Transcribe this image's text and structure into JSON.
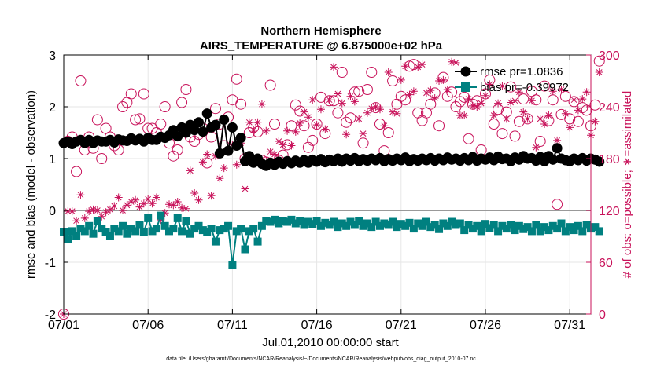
{
  "chart_data": {
    "type": "line",
    "title": "Northern Hemisphere",
    "subtitle": "AIRS_TEMPERATURE @ 6.875000e+02 hPa",
    "xlabel": "Jul.01,2010 00:00:00 start",
    "ylabel_left": "rmse and bias (model - observation)",
    "ylabel_right": "# of obs: o=possible; ∗=assimilated",
    "footnote": "data file: /Users/gharamti/Documents/NCAR/Reanalysis/~/Documents/NCAR/Reanalysis/webpub/obs_diag_output_2010-07.nc",
    "x_range": [
      1,
      32.25
    ],
    "ylim_left": [
      -2,
      3
    ],
    "ylim_right": [
      0,
      300
    ],
    "x_ticks": [
      1,
      6,
      11,
      16,
      21,
      26,
      31
    ],
    "x_tick_labels": [
      "07/01",
      "07/06",
      "07/11",
      "07/16",
      "07/21",
      "07/26",
      "07/31"
    ],
    "y_left_ticks": [
      -2,
      -1,
      0,
      1,
      2,
      3
    ],
    "y_right_ticks": [
      0,
      60,
      120,
      180,
      240,
      300
    ],
    "grid": true,
    "legend_position": "top-right",
    "colors": {
      "rmse": "#000000",
      "bias": "#008080",
      "obs": "#c8125a",
      "zero_line": "#999999"
    },
    "series": [
      {
        "name": "rmse pr=1.0836",
        "key": "rmse",
        "marker": "filled-circle",
        "values": [
          1.3,
          1.33,
          1.28,
          1.33,
          1.36,
          1.3,
          1.36,
          1.3,
          1.35,
          1.33,
          1.33,
          1.36,
          1.31,
          1.37,
          1.35,
          1.34,
          1.39,
          1.35,
          1.38,
          1.33,
          1.4,
          1.36,
          1.36,
          1.42,
          1.4,
          1.45,
          1.55,
          1.43,
          1.6,
          1.5,
          1.65,
          1.55,
          1.7,
          1.52,
          1.87,
          1.6,
          1.65,
          1.1,
          1.75,
          1.15,
          1.6,
          1.25,
          1.4,
          0.95,
          1.05,
          0.92,
          1.0,
          0.9,
          0.86,
          0.92,
          0.88,
          0.94,
          0.9,
          0.95,
          0.91,
          0.96,
          0.92,
          0.97,
          0.92,
          0.98,
          0.94,
          0.99,
          0.93,
          0.98,
          0.95,
          1.0,
          0.94,
          1.0,
          0.96,
          1.01,
          0.95,
          0.99,
          0.96,
          1.0,
          0.97,
          1.01,
          0.95,
          0.99,
          0.96,
          1.0,
          0.97,
          1.02,
          0.95,
          0.99,
          0.96,
          1.0,
          0.97,
          1.01,
          0.96,
          1.0,
          0.97,
          1.02,
          0.98,
          1.0,
          0.96,
          1.01,
          0.97,
          1.03,
          0.96,
          1.0,
          0.98,
          1.02,
          0.97,
          1.04,
          0.99,
          1.0,
          0.95,
          1.02,
          0.98,
          1.05,
          1.0,
          1.01,
          0.96,
          1.03,
          0.95,
          1.05,
          0.98,
          1.2,
          1.0,
          0.97,
          0.95,
          1.0,
          0.97,
          1.01,
          0.96,
          1.0,
          0.98,
          0.94
        ]
      },
      {
        "name": "bias pr=-0.39972",
        "key": "bias",
        "marker": "filled-square",
        "values": [
          -0.42,
          -0.55,
          -0.4,
          -0.5,
          -0.35,
          -0.4,
          -0.3,
          -0.45,
          -0.2,
          -0.35,
          -0.42,
          -0.5,
          -0.35,
          -0.4,
          -0.3,
          -0.45,
          -0.35,
          -0.4,
          -0.28,
          -0.42,
          -0.15,
          -0.4,
          -0.35,
          -0.1,
          -0.3,
          -0.4,
          -0.35,
          -0.15,
          -0.4,
          -0.2,
          -0.45,
          -0.35,
          -0.3,
          -0.38,
          -0.42,
          -0.35,
          -0.6,
          -0.38,
          -0.35,
          -0.3,
          -1.05,
          -0.4,
          -0.35,
          -0.75,
          -0.4,
          -0.35,
          -0.6,
          -0.3,
          -0.2,
          -0.22,
          -0.18,
          -0.25,
          -0.2,
          -0.22,
          -0.18,
          -0.25,
          -0.2,
          -0.28,
          -0.22,
          -0.26,
          -0.2,
          -0.3,
          -0.24,
          -0.28,
          -0.22,
          -0.32,
          -0.25,
          -0.3,
          -0.22,
          -0.28,
          -0.2,
          -0.3,
          -0.25,
          -0.32,
          -0.22,
          -0.3,
          -0.25,
          -0.28,
          -0.22,
          -0.32,
          -0.26,
          -0.3,
          -0.24,
          -0.35,
          -0.25,
          -0.3,
          -0.22,
          -0.32,
          -0.28,
          -0.36,
          -0.25,
          -0.3,
          -0.22,
          -0.28,
          -0.25,
          -0.38,
          -0.28,
          -0.35,
          -0.3,
          -0.4,
          -0.26,
          -0.34,
          -0.28,
          -0.4,
          -0.3,
          -0.35,
          -0.28,
          -0.38,
          -0.3,
          -0.36,
          -0.32,
          -0.4,
          -0.28,
          -0.4,
          -0.32,
          -0.38,
          -0.3,
          -0.35,
          -0.25,
          -0.4,
          -0.32,
          -0.38,
          -0.3,
          -0.4,
          -0.28,
          -0.35,
          -0.32,
          -0.4
        ]
      },
      {
        "name": "possible",
        "key": "possible",
        "marker": "open-circle",
        "axis": "right",
        "values": [
          0,
          200,
          205,
          165,
          270,
          190,
          205,
          192,
          225,
          180,
          215,
          205,
          195,
          190,
          240,
          245,
          255,
          225,
          226,
          255,
          215,
          215,
          210,
          220,
          240,
          198,
          183,
          190,
          245,
          260,
          205,
          200,
          208,
          215,
          175,
          205,
          238,
          220,
          195,
          228,
          248,
          272,
          243,
          180,
          210,
          216,
          211,
          178,
          176,
          265,
          220,
          178,
          184,
          196,
          218,
          242,
          235,
          218,
          193,
          201,
          220,
          251,
          209,
          247,
          247,
          233,
          280,
          222,
          227,
          257,
          258,
          198,
          260,
          280,
          239,
          220,
          189,
          210,
          270,
          243,
          252,
          248,
          287,
          289,
          233,
          224,
          233,
          243,
          256,
          218,
          274,
          252,
          257,
          240,
          246,
          251,
          203,
          243,
          247,
          190,
          255,
          271,
          220,
          237,
          209,
          234,
          263,
          206,
          223,
          249,
          226,
          258,
          248,
          200,
          264,
          224,
          248,
          127,
          231,
          252,
          226,
          246,
          223,
          239,
          236,
          218,
          242,
          293
        ]
      },
      {
        "name": "assimilated",
        "key": "assimilated",
        "marker": "asterisk",
        "axis": "right",
        "values": [
          0,
          119,
          119,
          108,
          138,
          111,
          119,
          121,
          120,
          113,
          118,
          121,
          125,
          135,
          120,
          126,
          130,
          132,
          124,
          128,
          133,
          128,
          135,
          109,
          117,
          127,
          126,
          130,
          123,
          122,
          166,
          140,
          132,
          176,
          185,
          137,
          183,
          157,
          169,
          189,
          196,
          173,
          198,
          145,
          222,
          213,
          222,
          243,
          212,
          188,
          185,
          200,
          196,
          212,
          195,
          211,
          221,
          234,
          228,
          248,
          219,
          237,
          214,
          248,
          286,
          255,
          244,
          208,
          252,
          246,
          226,
          209,
          233,
          238,
          240,
          237,
          218,
          280,
          234,
          232,
          271,
          287,
          254,
          258,
          286,
          289,
          256,
          259,
          250,
          270,
          271,
          260,
          292,
          291,
          230,
          230,
          249,
          241,
          240,
          244,
          253,
          266,
          230,
          244,
          264,
          226,
          245,
          247,
          257,
          234,
          226,
          247,
          193,
          226,
          220,
          230,
          258,
          201,
          260,
          232,
          216,
          248,
          236,
          249,
          257,
          207,
          223,
          280
        ]
      }
    ]
  }
}
